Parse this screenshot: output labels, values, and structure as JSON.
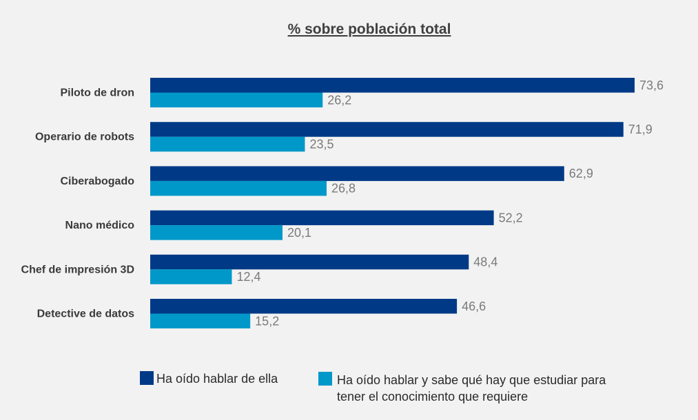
{
  "chart_data": {
    "type": "bar",
    "orientation": "horizontal",
    "title": "% sobre población total",
    "categories": [
      "Piloto de dron",
      "Operario de robots",
      "Ciberabogado",
      "Nano médico",
      "Chef de impresión 3D",
      "Detective de datos"
    ],
    "series": [
      {
        "name": "Ha oído hablar de ella",
        "color": "#003a87",
        "values": [
          73.6,
          71.9,
          62.9,
          52.2,
          48.4,
          46.6
        ],
        "labels": [
          "73,6",
          "71,9",
          "62,9",
          "52,2",
          "48,4",
          "46,6"
        ]
      },
      {
        "name": "Ha oído hablar y sabe qué hay que estudiar para tener el conocimiento que requiere",
        "name_lines": [
          "Ha oído hablar y sabe qué hay que estudiar para",
          "tener el conocimiento que requiere"
        ],
        "color": "#0098c9",
        "values": [
          26.2,
          23.5,
          26.8,
          20.1,
          12.4,
          15.2
        ],
        "labels": [
          "26,2",
          "23,5",
          "26,8",
          "20,1",
          "12,4",
          "15,2"
        ]
      }
    ],
    "xlim": [
      0,
      73.6
    ],
    "grid": false,
    "legend_position": "bottom"
  }
}
